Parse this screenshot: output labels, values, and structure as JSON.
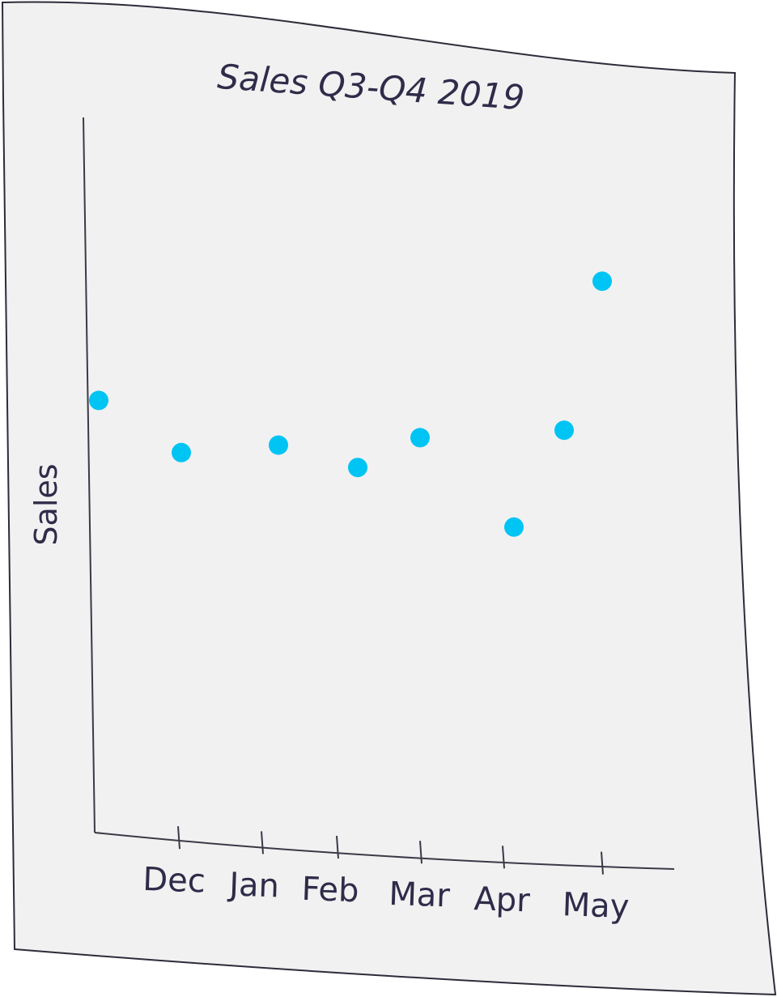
{
  "chart_data": {
    "type": "scatter",
    "title": "Sales Q3-Q4 2019",
    "xlabel": "",
    "ylabel": "Sales",
    "x_tick_labels": [
      "Dec",
      "Jan",
      "Feb",
      "Mar",
      "Apr",
      "May"
    ],
    "points": [
      {
        "x": "Nov",
        "y": 58
      },
      {
        "x": "Dec",
        "y": 51
      },
      {
        "x": "Jan",
        "y": 52
      },
      {
        "x": "Feb",
        "y": 49
      },
      {
        "x": "Mar",
        "y": 53
      },
      {
        "x": "Apr",
        "y": 54
      },
      {
        "x": "Apr",
        "y": 41
      },
      {
        "x": "May",
        "y": 74
      }
    ],
    "ylim": [
      0,
      100
    ],
    "grid": false,
    "legend": "none",
    "colors": {
      "point": "#00c4f4",
      "text": "#2f2c4a",
      "paper": "#f1f1f1"
    }
  }
}
